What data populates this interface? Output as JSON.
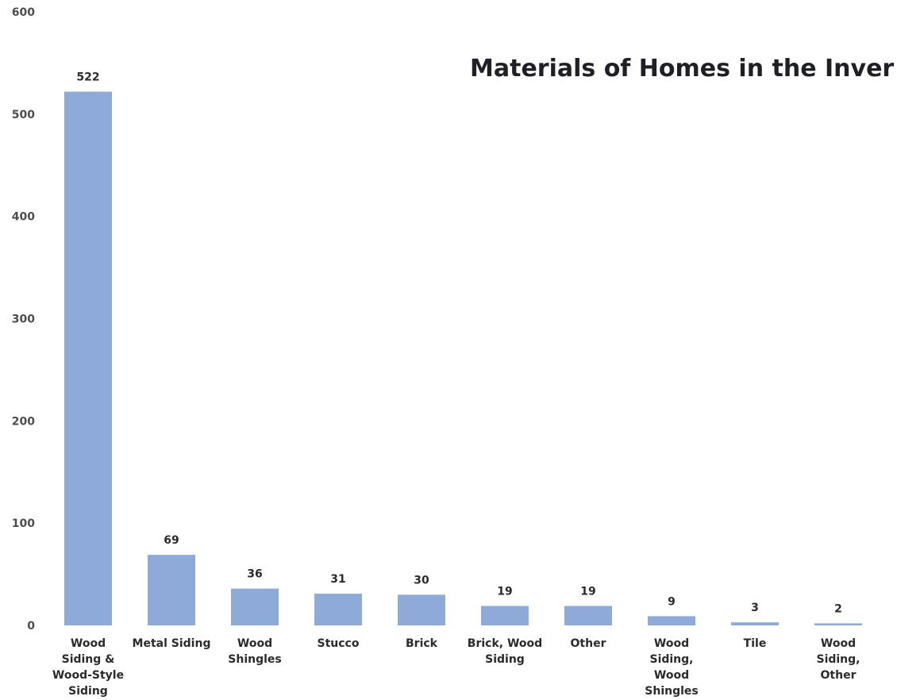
{
  "chart_data": {
    "type": "bar",
    "title": "Materials of Homes in the Inver",
    "xlabel": "",
    "ylabel": "",
    "ylim": [
      0,
      600
    ],
    "yticks": [
      "0",
      "100",
      "200",
      "300",
      "400",
      "500",
      "600"
    ],
    "grid": false,
    "bar_color": "#8eaad8",
    "categories": [
      [
        "Wood",
        "Siding &",
        "Wood-Style",
        "Siding"
      ],
      [
        "Metal Siding"
      ],
      [
        "Wood",
        "Shingles"
      ],
      [
        "Stucco"
      ],
      [
        "Brick"
      ],
      [
        "Brick, Wood",
        "Siding"
      ],
      [
        "Other"
      ],
      [
        "Wood",
        "Siding,",
        "Wood",
        "Shingles"
      ],
      [
        "Tile"
      ],
      [
        "Wood",
        "Siding,",
        "Other"
      ]
    ],
    "values": [
      522,
      69,
      36,
      31,
      30,
      19,
      19,
      9,
      3,
      2
    ],
    "value_labels": [
      "522",
      "69",
      "36",
      "31",
      "30",
      "19",
      "19",
      "9",
      "3",
      "2"
    ]
  }
}
